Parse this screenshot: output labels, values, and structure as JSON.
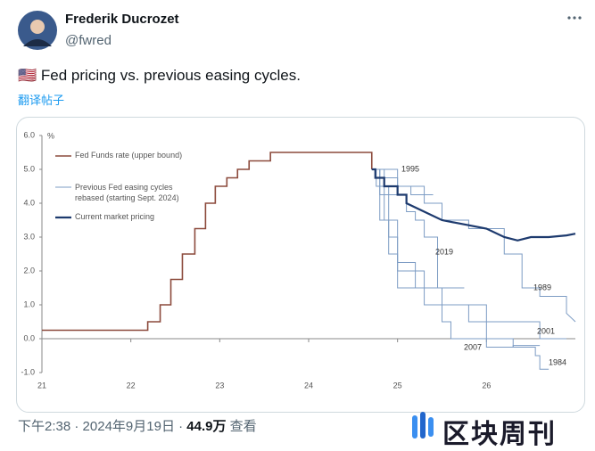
{
  "tweet": {
    "name": "Frederik Ducrozet",
    "handle": "@fwred",
    "flag": "🇺🇸",
    "text": "Fed pricing vs. previous easing cycles.",
    "translate": "翻译帖子"
  },
  "footer": {
    "time": "下午2:38",
    "separator": "·",
    "date": "2024年9月19日",
    "views": "44.9万",
    "views_label": "查看"
  },
  "watermark": "区块周刊",
  "chart_data": {
    "type": "line",
    "y_unit": "%",
    "xlim": [
      21,
      27
    ],
    "xticks": [
      21,
      22,
      23,
      24,
      25,
      26
    ],
    "ylim": [
      -1,
      6
    ],
    "yticks": [
      {
        "value": 6,
        "label": "6.0"
      },
      {
        "value": 5,
        "label": "5.0"
      },
      {
        "value": 4,
        "label": "4.0"
      },
      {
        "value": 3,
        "label": "3.0"
      },
      {
        "value": 2,
        "label": "2.0"
      },
      {
        "value": 1,
        "label": "1.0"
      },
      {
        "value": 0,
        "label": "0.0"
      },
      {
        "value": -1,
        "label": "-1.0"
      }
    ],
    "series": [
      {
        "name": "Fed Funds rate (upper bound)",
        "color": "#8c4a3c",
        "x": [
          21,
          22.19,
          22.19,
          22.33,
          22.33,
          22.45,
          22.45,
          22.58,
          22.58,
          22.72,
          22.72,
          22.84,
          22.84,
          22.95,
          22.95,
          23.08,
          23.08,
          23.2,
          23.2,
          23.33,
          23.33,
          23.57,
          23.57,
          24.71,
          24.71
        ],
        "values": [
          0.25,
          0.25,
          0.5,
          0.5,
          1,
          1,
          1.75,
          1.75,
          2.5,
          2.5,
          3.25,
          3.25,
          4,
          4,
          4.5,
          4.5,
          4.75,
          4.75,
          5,
          5,
          5.25,
          5.25,
          5.5,
          5.5,
          5
        ]
      },
      {
        "name": "Previous Fed easing cycles rebased (starting Sept. 2024)",
        "color": "#7d9cc4",
        "cycles": [
          {
            "label": "1995",
            "x": [
              24.71,
              24.8,
              24.8,
              25.0,
              25.0,
              25.15,
              25.15,
              25.4
            ],
            "values": [
              5,
              5,
              4.75,
              4.75,
              4.5,
              4.5,
              4.25,
              4.25
            ]
          },
          {
            "label": "2019",
            "x": [
              24.71,
              24.76,
              24.76,
              24.9,
              24.9,
              25.1,
              25.1,
              25.2,
              25.2,
              25.3,
              25.3,
              25.45,
              25.45,
              25.75
            ],
            "values": [
              5,
              5,
              4.5,
              4.5,
              4.25,
              4.25,
              3.75,
              3.75,
              3.5,
              3.5,
              3,
              3,
              1.5,
              1.5
            ]
          },
          {
            "label": "1989",
            "x": [
              24.71,
              25.0,
              25.0,
              25.3,
              25.3,
              25.5,
              25.5,
              25.8,
              25.8,
              26.2,
              26.2,
              26.4,
              26.4,
              26.6,
              26.6,
              26.9,
              26.9,
              27.0
            ],
            "values": [
              5,
              5,
              4.5,
              4.5,
              4,
              4,
              3.5,
              3.5,
              3.25,
              3.25,
              2.5,
              2.5,
              1.5,
              1.5,
              1.25,
              1.25,
              0.75,
              0.5
            ]
          },
          {
            "label": "2001",
            "x": [
              24.71,
              24.8,
              24.8,
              24.9,
              24.9,
              25.0,
              25.0,
              25.3,
              25.3,
              25.5,
              25.5,
              26.0,
              26.0,
              26.6,
              26.6,
              26.9
            ],
            "values": [
              5,
              5,
              3.5,
              3.5,
              3,
              3,
              2,
              2,
              1.5,
              1.5,
              1,
              1,
              0.5,
              0.5,
              0,
              0
            ]
          },
          {
            "label": "2007",
            "x": [
              24.71,
              24.8,
              24.8,
              24.9,
              24.9,
              25.0,
              25.0,
              25.3,
              25.3,
              25.5,
              25.5,
              25.6,
              25.6,
              26.0,
              26.0,
              26.3,
              26.3,
              26.6
            ],
            "values": [
              5,
              5,
              4.25,
              4.25,
              2.5,
              2.5,
              1.5,
              1.5,
              1,
              1,
              0.5,
              0.5,
              0,
              0,
              -0.25,
              -0.25,
              -0.2,
              -0.2
            ]
          },
          {
            "label": "1984",
            "x": [
              24.71,
              24.85,
              24.85,
              25.0,
              25.0,
              25.2,
              25.2,
              25.5,
              25.5,
              25.8,
              25.8,
              26.0,
              26.0,
              26.3,
              26.3,
              26.55,
              26.55,
              26.6,
              26.6,
              26.7
            ],
            "values": [
              5,
              5,
              3.5,
              3.5,
              2.25,
              2.25,
              1.5,
              1.5,
              1,
              1,
              0.5,
              0.5,
              0,
              0,
              -0.25,
              -0.25,
              -0.5,
              -0.5,
              -0.9,
              -0.9
            ]
          }
        ]
      },
      {
        "name": "Current market pricing",
        "color": "#1d3a6e",
        "x": [
          24.71,
          24.75,
          24.75,
          24.85,
          24.85,
          25.0,
          25.0,
          25.1,
          25.1,
          25.3,
          25.5,
          25.8,
          26.0,
          26.2,
          26.35,
          26.5,
          26.7,
          26.9,
          27.0
        ],
        "values": [
          5,
          5,
          4.75,
          4.75,
          4.5,
          4.5,
          4.25,
          4.25,
          4.0,
          3.75,
          3.5,
          3.35,
          3.25,
          3.0,
          2.9,
          3.0,
          3.0,
          3.05,
          3.1
        ]
      }
    ]
  }
}
